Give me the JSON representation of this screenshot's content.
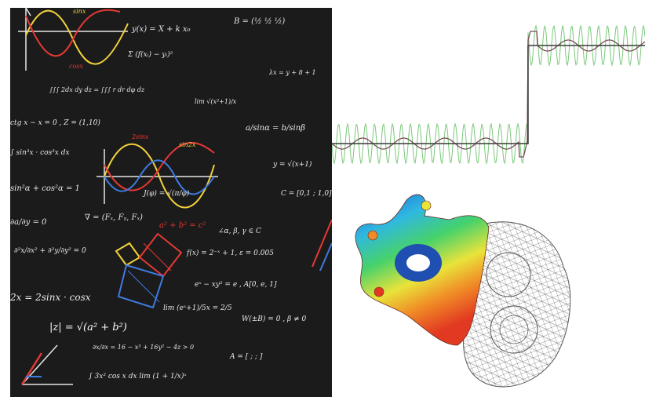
{
  "board": {
    "background": "#1b1b1b",
    "chalk_color": "#e8e8e8",
    "accent_colors": [
      "#e53935",
      "#f2d13a",
      "#3f7be0",
      "#ffffff"
    ],
    "labels": {
      "sin": "sinx",
      "cos": "cosx",
      "sin2": "2sinx",
      "sin2x": "sin2x"
    },
    "formulas": [
      "y(x) = X + k x₀",
      "B = (½ ½ ½)",
      "Σ (f(xᵢ) − yᵢ)²",
      "∫∫∫ 2dx dy dz = ∫∫∫ r dr dφ dz",
      "lim √(x²+1)/x",
      "λx = y + 8 + 1",
      "ctg x − x = 0 , Z = (1,10)",
      "a/sinα = b/sinβ",
      "∫ sin³x · cos³x dx",
      "y = √(x+1)",
      "sin²α + cos²α = 1",
      "J(φ) = √(π/φ)",
      "C = [0,1 ; 1,0]",
      "∂a/∂y = 0",
      "∇ = (Fₓ, Fᵧ, Fₓ)",
      "a² + b² = c²",
      "∠α, β, γ ∈ C",
      "∂²x/∂x² + ∂²y/∂y² = 0",
      "f(x) = 2⁻ˣ + 1, ε = 0.005",
      "2x = 2sinx · cosx",
      "eˣ − xy² = e , A[0, e, 1]",
      "lim (eˣ+1)/5x = 2/5",
      "|z| = √(a² + b²)",
      "W(±B) = 0 , β ≠ 0",
      "∂x/∂x = 16 − x³ + 16y² − 4z > 0",
      "A = [ ; ; ]",
      "∫ 3x² cos x dx  lim (1 + 1/x)ˣ"
    ]
  },
  "signal": {
    "square_color": "#3a3a3a",
    "noisy_color": "#7ac87a",
    "filtered_color": "#7a4a5a"
  },
  "mesh_part": {
    "gradient_colors": [
      "#1f5fd6",
      "#2fb8e0",
      "#46d26b",
      "#e9e33a",
      "#f08a26",
      "#e23a22"
    ],
    "wire_color": "#555555"
  }
}
